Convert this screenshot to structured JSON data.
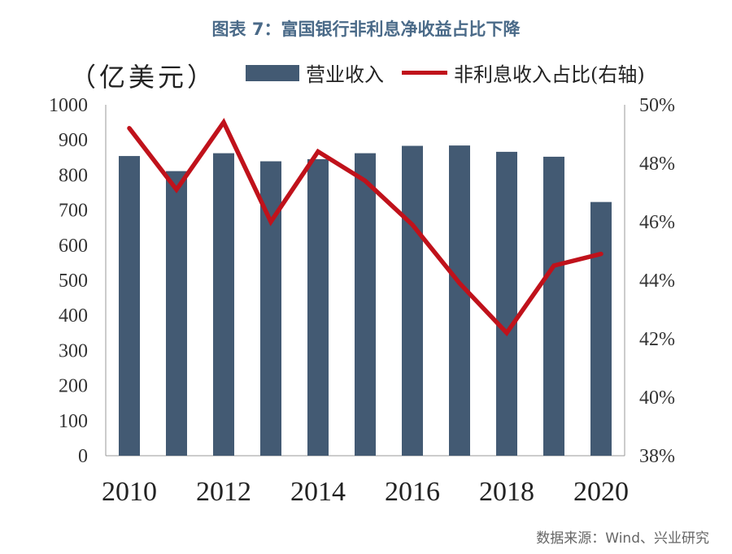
{
  "title": "图表 7：富国银行非利息净收益占比下降",
  "unit_label": "（亿美元）",
  "legend": {
    "bar": "营业收入",
    "line": "非利息收入占比(右轴)"
  },
  "source": "数据来源：Wind、兴业研究",
  "colors": {
    "bar": "#435a73",
    "line": "#c0121b"
  },
  "chart_data": {
    "type": "bar",
    "title": "图表 7：富国银行非利息净收益占比下降",
    "categories": [
      "2010",
      "2011",
      "2012",
      "2013",
      "2014",
      "2015",
      "2016",
      "2017",
      "2018",
      "2019",
      "2020"
    ],
    "x_tick_labels": [
      "2010",
      "2012",
      "2014",
      "2016",
      "2018",
      "2020"
    ],
    "series": [
      {
        "name": "营业收入",
        "type": "bar",
        "axis": "left",
        "values": [
          854,
          811,
          862,
          839,
          845,
          862,
          883,
          884,
          866,
          852,
          723
        ]
      },
      {
        "name": "非利息收入占比(右轴)",
        "type": "line",
        "axis": "right",
        "values": [
          49.2,
          47.1,
          49.4,
          46.0,
          48.4,
          47.4,
          45.9,
          43.9,
          42.2,
          44.5,
          44.9
        ]
      }
    ],
    "left_axis": {
      "ylim": [
        0,
        1000
      ],
      "ticks": [
        "0",
        "100",
        "200",
        "300",
        "400",
        "500",
        "600",
        "700",
        "800",
        "900",
        "1000"
      ]
    },
    "right_axis": {
      "ylim": [
        38,
        50
      ],
      "ticks": [
        "38%",
        "40%",
        "42%",
        "44%",
        "46%",
        "48%",
        "50%"
      ]
    },
    "ylabel": "（亿美元）",
    "grid": false,
    "legend_position": "top"
  }
}
